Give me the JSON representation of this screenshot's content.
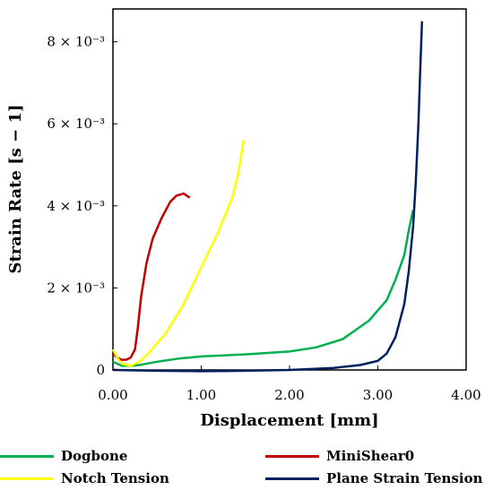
{
  "chart_data": {
    "type": "line",
    "xlabel": "Displacement [mm]",
    "ylabel": "Strain Rate [s − 1]",
    "xlim": [
      0,
      4.0
    ],
    "ylim": [
      0,
      0.0088
    ],
    "x_ticks": [
      0,
      1,
      2,
      3,
      4
    ],
    "x_tick_labels": [
      "0.00",
      "1.00",
      "2.00",
      "3.00",
      "4.00"
    ],
    "y_ticks": [
      0,
      0.002,
      0.004,
      0.006,
      0.008
    ],
    "y_tick_labels": [
      "0",
      "2 × 10⁻³",
      "4 × 10⁻³",
      "6 × 10⁻³",
      "8 × 10⁻³"
    ],
    "grid": false,
    "legend_position": "bottom",
    "series": [
      {
        "name": "Dogbone",
        "color": "#00b050",
        "x": [
          0.0,
          0.1,
          0.2,
          0.3,
          0.5,
          0.75,
          1.0,
          1.5,
          2.0,
          2.3,
          2.6,
          2.9,
          3.1,
          3.2,
          3.3,
          3.35,
          3.4
        ],
        "y": [
          0.0002,
          0.0001,
          0.0001,
          0.00012,
          0.0002,
          0.00028,
          0.00033,
          0.00038,
          0.00045,
          0.00055,
          0.00075,
          0.0012,
          0.0017,
          0.0022,
          0.0028,
          0.0034,
          0.0039
        ]
      },
      {
        "name": "MiniShear0",
        "color": "#c00000",
        "x": [
          0.0,
          0.05,
          0.1,
          0.15,
          0.2,
          0.25,
          0.28,
          0.32,
          0.38,
          0.45,
          0.55,
          0.65,
          0.72,
          0.8,
          0.87
        ],
        "y": [
          0.0004,
          0.0003,
          0.00025,
          0.00025,
          0.0003,
          0.0005,
          0.001,
          0.0018,
          0.0026,
          0.0032,
          0.0037,
          0.0041,
          0.00425,
          0.0043,
          0.0042
        ]
      },
      {
        "name": "Notch Tension",
        "color": "#ffff00",
        "x": [
          0.0,
          0.05,
          0.1,
          0.2,
          0.3,
          0.4,
          0.6,
          0.8,
          1.0,
          1.2,
          1.35,
          1.42,
          1.48
        ],
        "y": [
          0.0005,
          0.0003,
          0.00015,
          0.0001,
          0.0002,
          0.0004,
          0.0009,
          0.0016,
          0.0025,
          0.0034,
          0.0042,
          0.0048,
          0.0056
        ]
      },
      {
        "name": "Plane Strain Tension",
        "color": "#002060",
        "x": [
          0.0,
          0.5,
          1.0,
          1.5,
          2.0,
          2.5,
          2.8,
          3.0,
          3.1,
          3.2,
          3.3,
          3.35,
          3.4,
          3.43,
          3.46,
          3.48,
          3.5
        ],
        "y": [
          0.0,
          -2e-05,
          -3e-05,
          -2e-05,
          0.0,
          5e-05,
          0.00012,
          0.00022,
          0.0004,
          0.0008,
          0.0016,
          0.0024,
          0.0035,
          0.0046,
          0.006,
          0.0073,
          0.0085
        ]
      }
    ]
  }
}
